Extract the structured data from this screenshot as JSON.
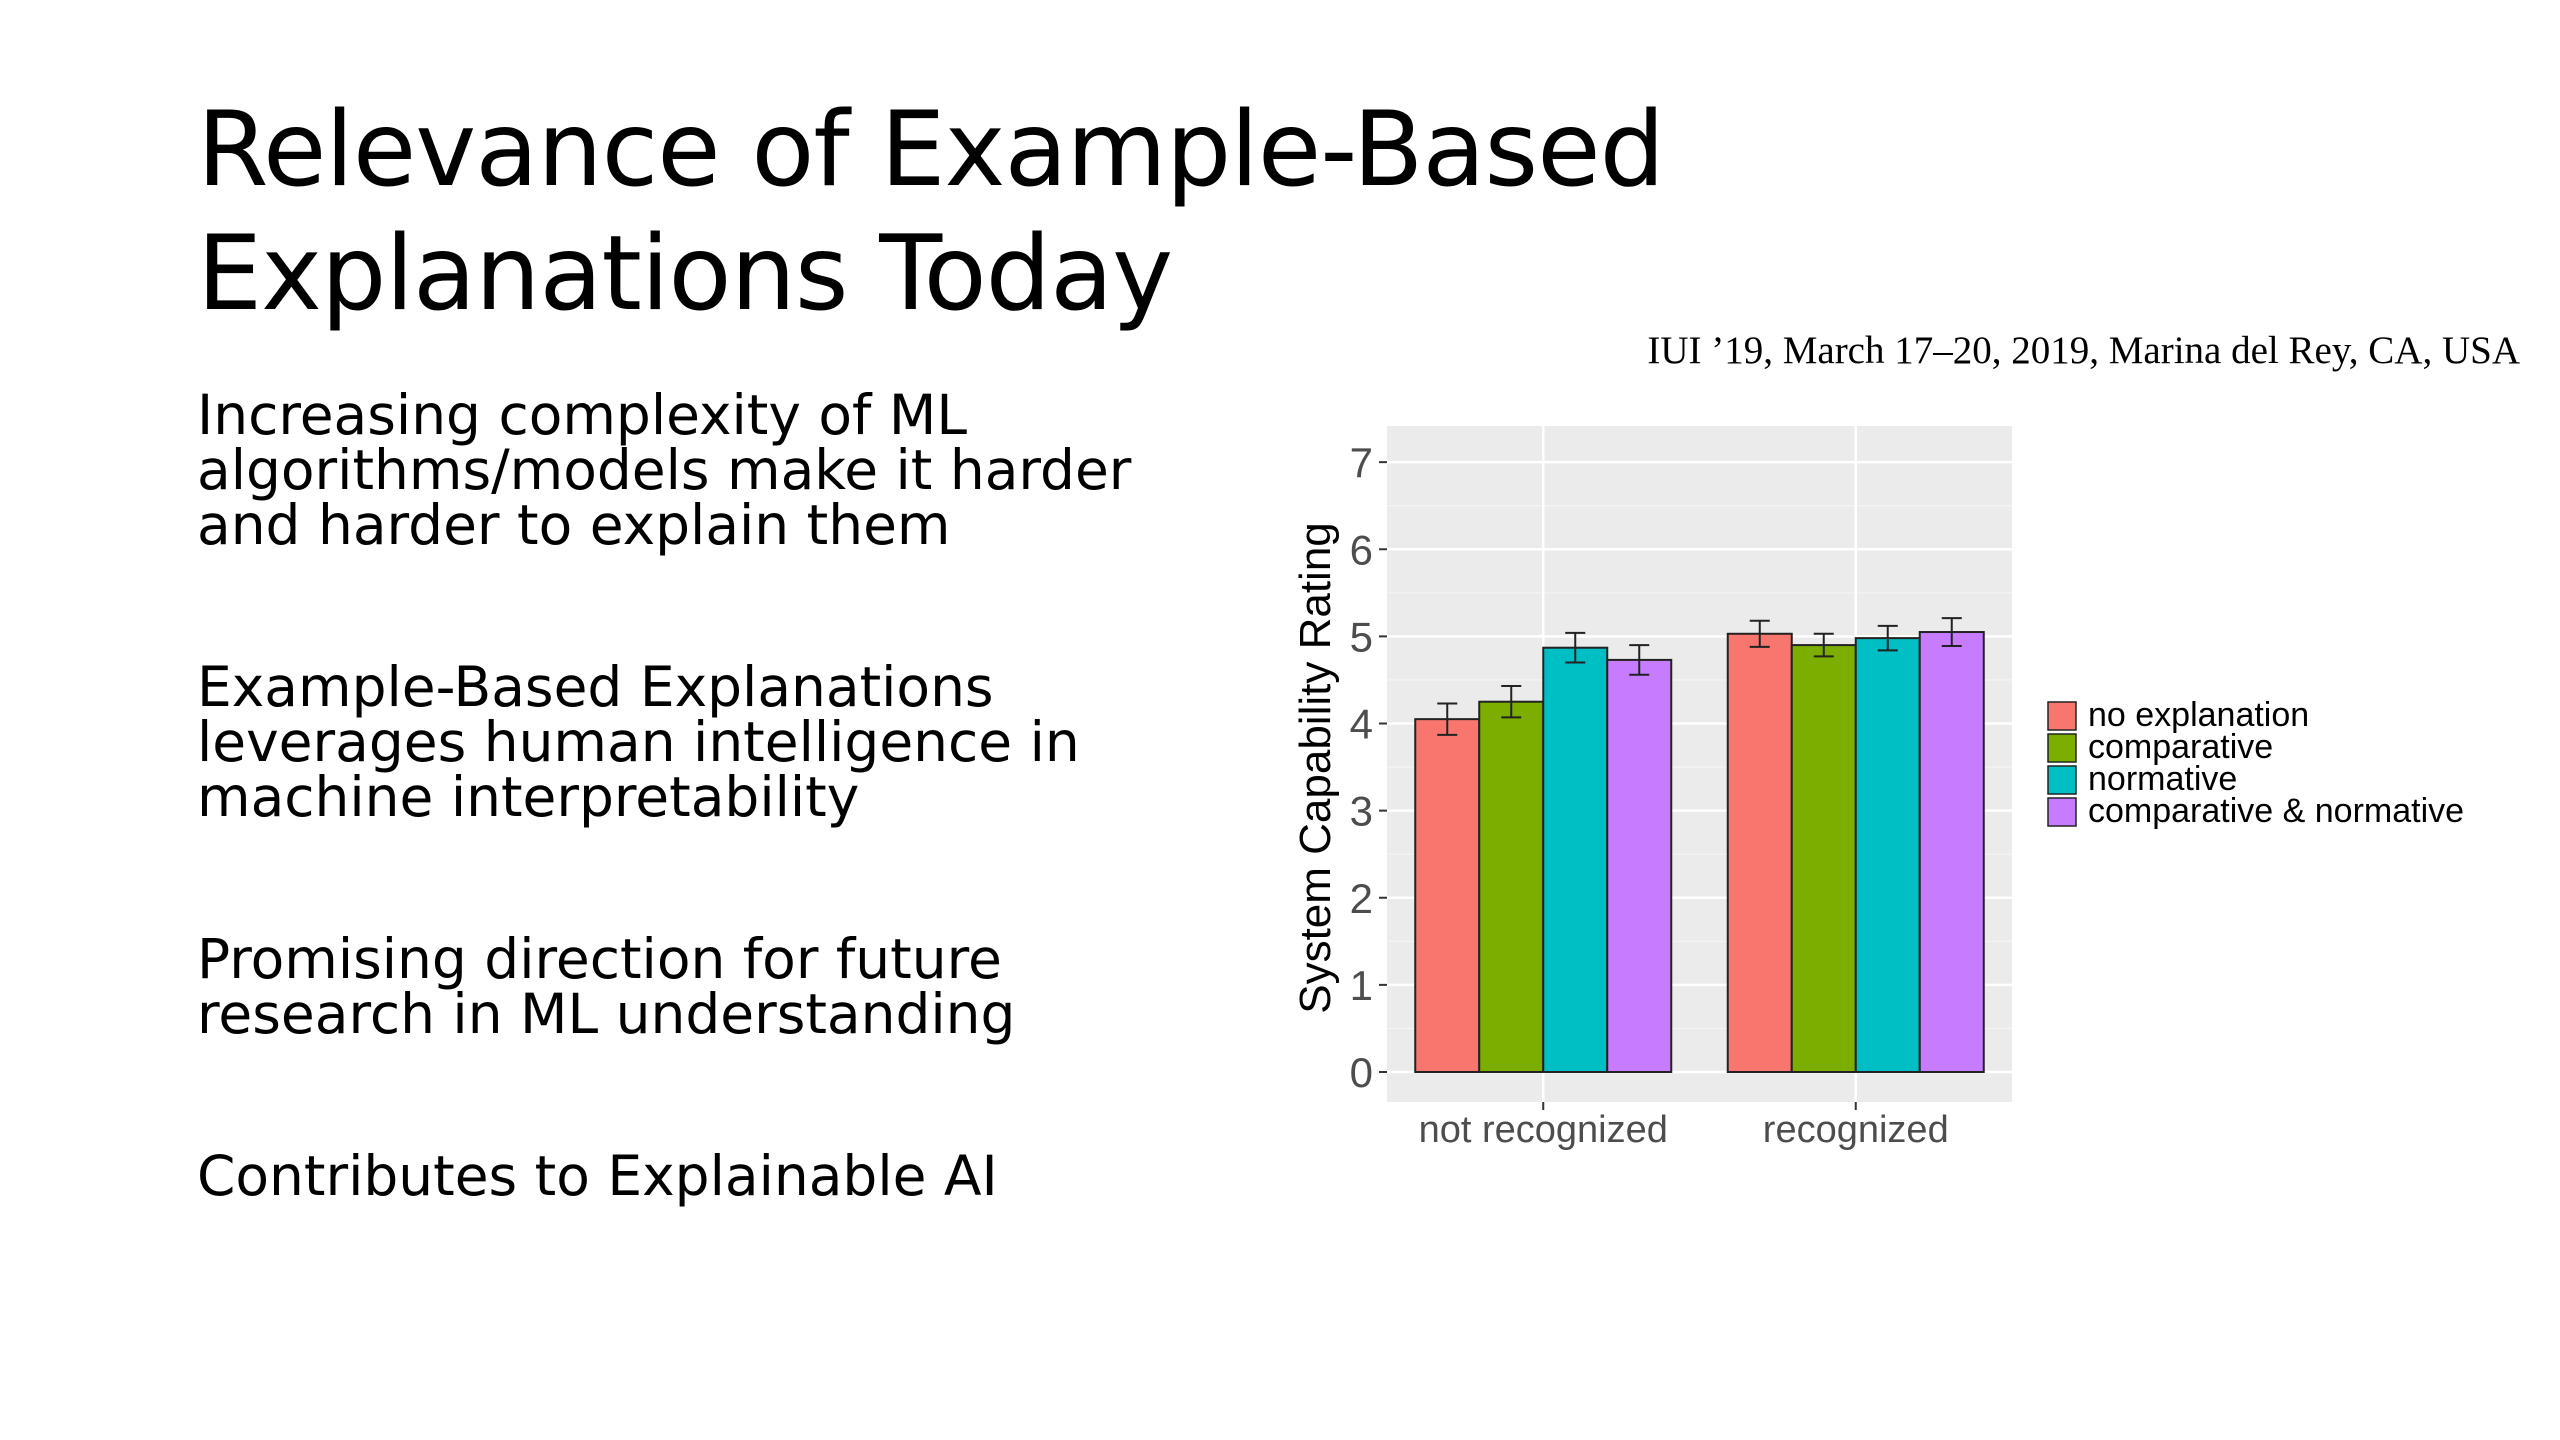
{
  "slide": {
    "title": "Relevance of Example-Based Explanations Today",
    "bullets": [
      "Increasing complexity of ML algorithms/models make it harder and harder to explain them",
      "Example-Based Explanations leverages human intelligence in machine interpretability",
      "Promising direction for future research in ML understanding",
      "Contributes to Explainable AI"
    ],
    "citation": "IUI ’19, March 17–20, 2019, Marina del Rey, CA, USA"
  },
  "chart_data": {
    "type": "bar",
    "title": "",
    "xlabel": "",
    "ylabel": "System Capability Rating",
    "ylim": [
      0,
      7.3
    ],
    "yticks": [
      "0",
      "1",
      "2",
      "3",
      "4",
      "5",
      "6",
      "7"
    ],
    "categories": [
      "not recognized",
      "recognized"
    ],
    "series": [
      {
        "name": "no explanation",
        "color": "#f8766d",
        "values": [
          4.05,
          5.03
        ],
        "errors": [
          0.18,
          0.15
        ]
      },
      {
        "name": "comparative",
        "color": "#7cae00",
        "values": [
          4.25,
          4.9
        ],
        "errors": [
          0.18,
          0.13
        ]
      },
      {
        "name": "normative",
        "color": "#00bfc4",
        "values": [
          4.87,
          4.98
        ],
        "errors": [
          0.17,
          0.14
        ]
      },
      {
        "name": "comparative & normative",
        "color": "#c77cff",
        "values": [
          4.73,
          5.05
        ],
        "errors": [
          0.17,
          0.16
        ]
      }
    ],
    "grid": true,
    "legend_position": "right",
    "panel_background": "#ebebeb"
  }
}
